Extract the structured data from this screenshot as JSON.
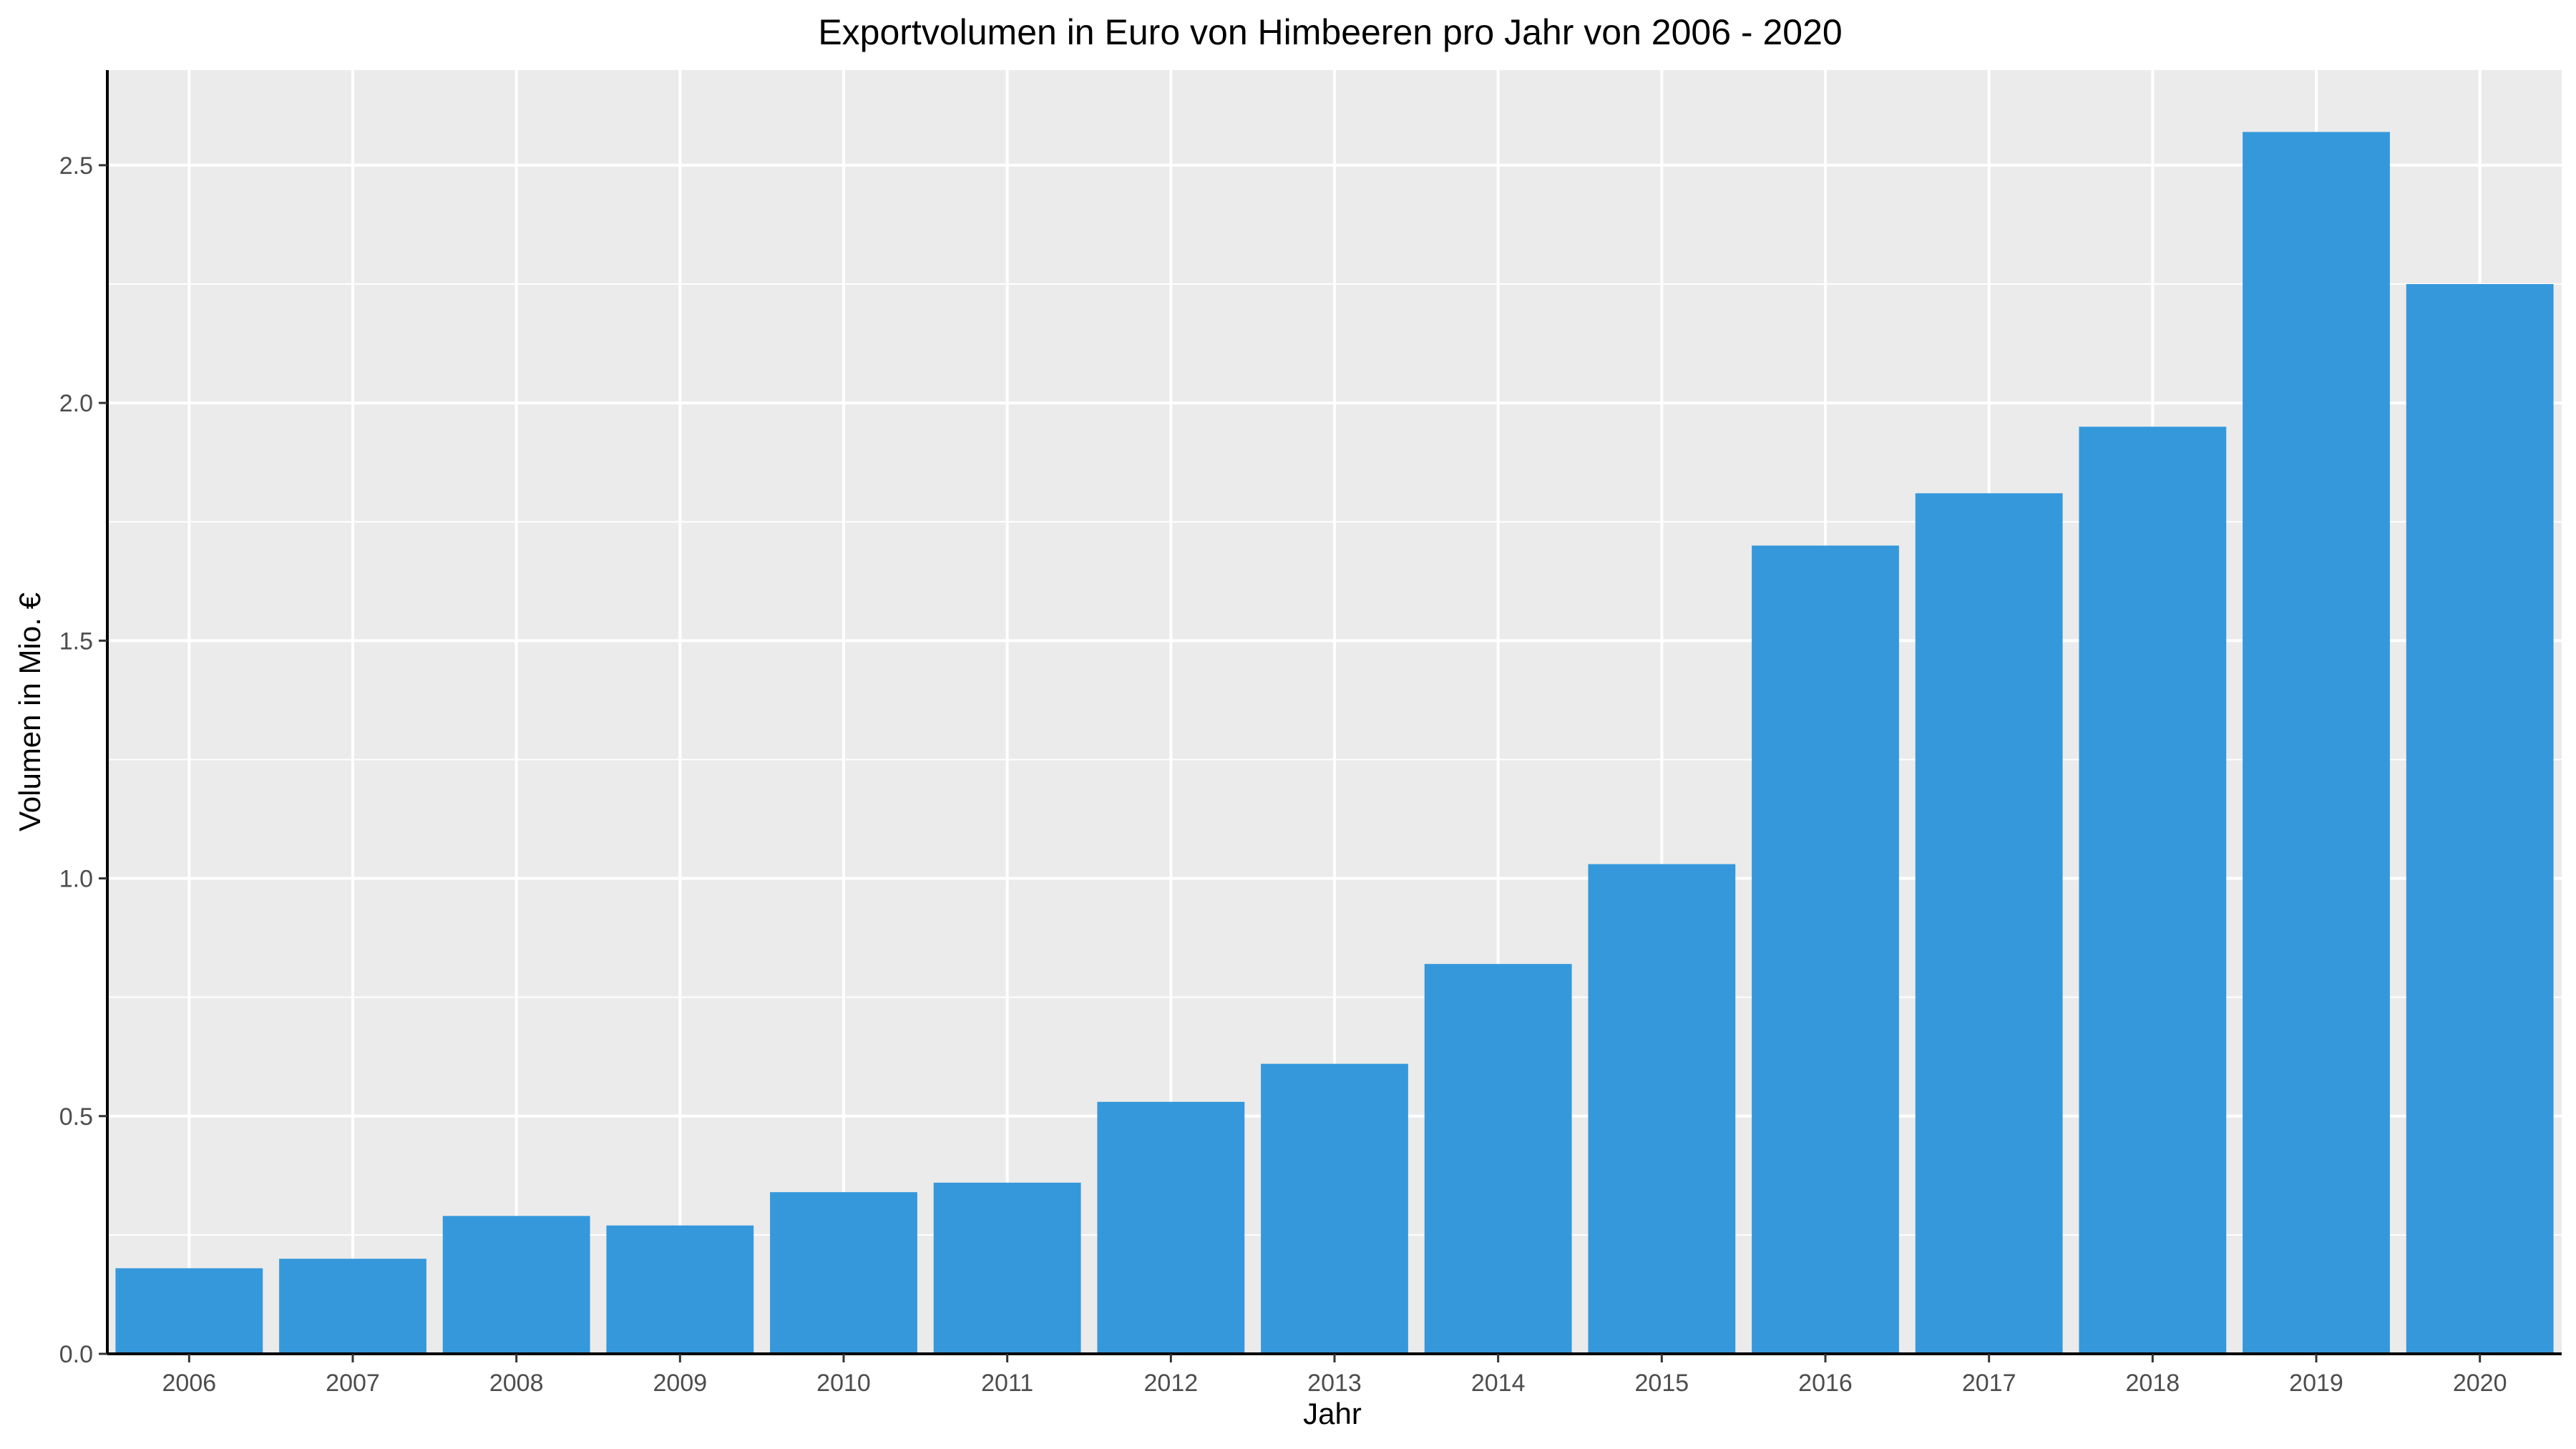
{
  "chart_data": {
    "type": "bar",
    "title": "Exportvolumen in Euro von Himbeeren pro Jahr von 2006 - 2020",
    "xlabel": "Jahr",
    "ylabel": "Volumen in Mio. €",
    "categories": [
      "2006",
      "2007",
      "2008",
      "2009",
      "2010",
      "2011",
      "2012",
      "2013",
      "2014",
      "2015",
      "2016",
      "2017",
      "2018",
      "2019",
      "2020"
    ],
    "values": [
      0.18,
      0.2,
      0.29,
      0.27,
      0.34,
      0.36,
      0.53,
      0.61,
      0.82,
      1.03,
      1.7,
      1.81,
      1.95,
      2.57,
      2.25
    ],
    "ylim": [
      0,
      2.7
    ],
    "yticks": [
      0.0,
      0.5,
      1.0,
      1.5,
      2.0,
      2.5
    ],
    "ytick_labels": [
      "0.0",
      "0.5",
      "1.0",
      "1.5",
      "2.0",
      "2.5"
    ],
    "grid": true,
    "colors": {
      "bar": "#3598db",
      "panel": "#ebebeb",
      "grid": "#ffffff",
      "axis": "#000000"
    }
  }
}
